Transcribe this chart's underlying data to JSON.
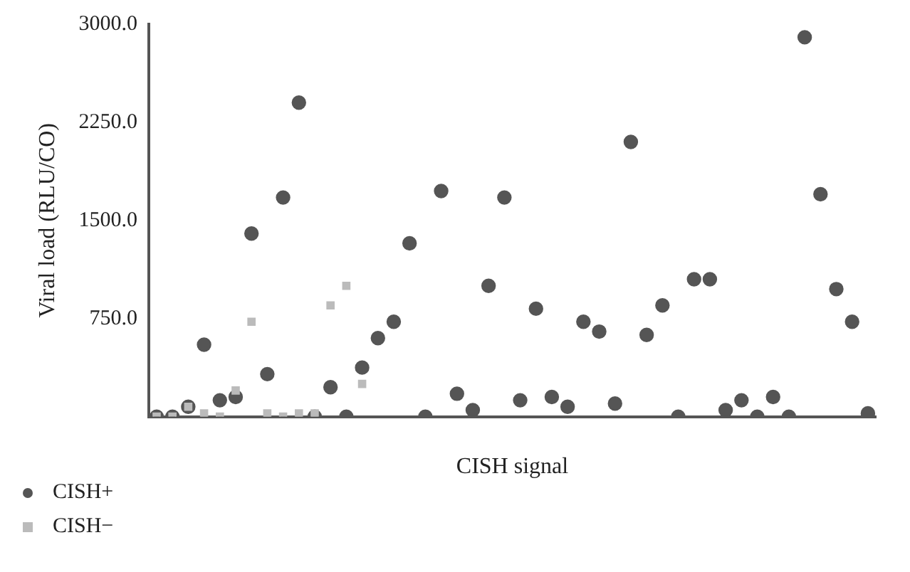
{
  "chart_data": {
    "type": "scatter",
    "xlabel": "CISH signal",
    "ylabel": "Viral load (RLU/CO)",
    "categories": [
      null,
      null,
      null,
      null,
      null,
      null,
      null,
      null,
      null,
      null,
      null,
      null,
      null,
      null,
      null,
      null,
      null,
      null,
      null,
      null,
      null,
      null,
      null,
      null,
      null,
      null,
      null,
      null,
      null,
      null,
      null,
      null,
      null,
      null,
      null,
      null,
      null,
      null,
      null,
      null,
      null,
      null,
      null,
      null,
      null,
      null
    ],
    "series": [
      {
        "name": "CISH+",
        "color": "#555555",
        "marker": "circle",
        "values": [
          0,
          0,
          75,
          550,
          125,
          150,
          1400,
          325,
          1675,
          2400,
          0,
          225,
          0,
          375,
          600,
          725,
          1325,
          0,
          1725,
          175,
          50,
          1000,
          1675,
          125,
          825,
          150,
          75,
          725,
          650,
          100,
          2100,
          625,
          850,
          0,
          1050,
          1050,
          50,
          125,
          0,
          150,
          0,
          2900,
          1700,
          975,
          725,
          25
        ]
      },
      {
        "name": "CISH−",
        "color": "#bbbbbb",
        "marker": "square",
        "values": [
          0,
          0,
          75,
          25,
          0,
          200,
          725,
          25,
          0,
          25,
          25,
          850,
          1000,
          250,
          null,
          null,
          null,
          null,
          null,
          null,
          null,
          null,
          null,
          null,
          null,
          null,
          null,
          null,
          null,
          null,
          null,
          null,
          null,
          null,
          null,
          null,
          null,
          null,
          null,
          null,
          null,
          null,
          null,
          null,
          null,
          null
        ]
      }
    ],
    "ylim": [
      0,
      3000
    ],
    "yticks": [
      {
        "value": 750,
        "label": "750.0"
      },
      {
        "value": 1500,
        "label": "1500.0"
      },
      {
        "value": 2250,
        "label": "2250.0"
      },
      {
        "value": 3000,
        "label": "3000.0"
      }
    ],
    "grid": false,
    "legend": "bottom left"
  }
}
